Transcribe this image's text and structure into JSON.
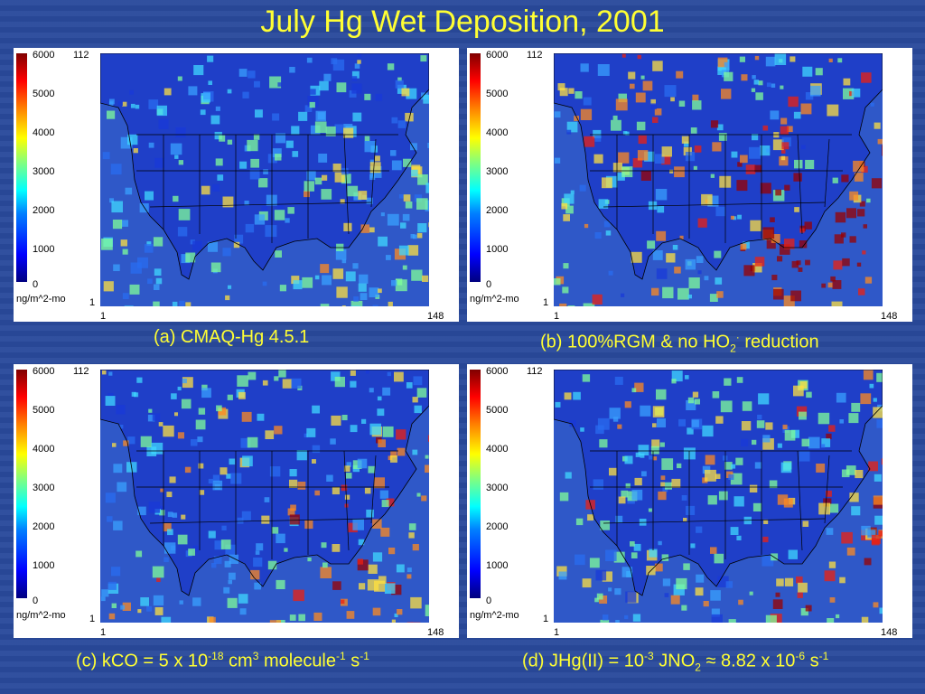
{
  "title": "July Hg Wet Deposition, 2001",
  "colorbar": {
    "ticks": [
      "6000",
      "5000",
      "4000",
      "3000",
      "2000",
      "1000",
      "0"
    ],
    "unit": "ng/m^2-mo"
  },
  "axes": {
    "y_max": "112",
    "y_min": "1",
    "x_min": "1",
    "x_max": "148"
  },
  "panels": [
    {
      "id": "a",
      "caption": {
        "text": "(a) CMAQ-Hg 4.5.1"
      },
      "hotspot_level": 0.25,
      "map_colors": {
        "ocean": "#2f58c8",
        "land": "#1f3fc8"
      }
    },
    {
      "id": "b",
      "caption": {
        "p1": "(b) 100%RGM & no HO",
        "sub1": "2",
        "sup1": "·",
        "p2": " reduction"
      },
      "hotspot_level": 1.0,
      "map_colors": {
        "ocean": "#2f58c8",
        "land": "#1f3fc8"
      }
    },
    {
      "id": "c",
      "caption": {
        "p1": "(c) kCO = 5 x 10",
        "sup1": "-18",
        "p2": " cm",
        "sup2": "3",
        "p3": " molecule",
        "sup3": "-1",
        "p4": " s",
        "sup4": "-1"
      },
      "hotspot_level": 0.6,
      "map_colors": {
        "ocean": "#2f58c8",
        "land": "#1f3fc8"
      }
    },
    {
      "id": "d",
      "caption": {
        "p1": "(d) JHg(II) = 10",
        "sup1": "-3",
        "p2": " JNO",
        "sub1": "2",
        "p3": " ≈ 8.82 x 10",
        "sup2": "-6",
        "p4": " s",
        "sup3": "-1"
      },
      "hotspot_level": 0.6,
      "map_colors": {
        "ocean": "#2f58c8",
        "land": "#1f3fc8"
      }
    }
  ]
}
